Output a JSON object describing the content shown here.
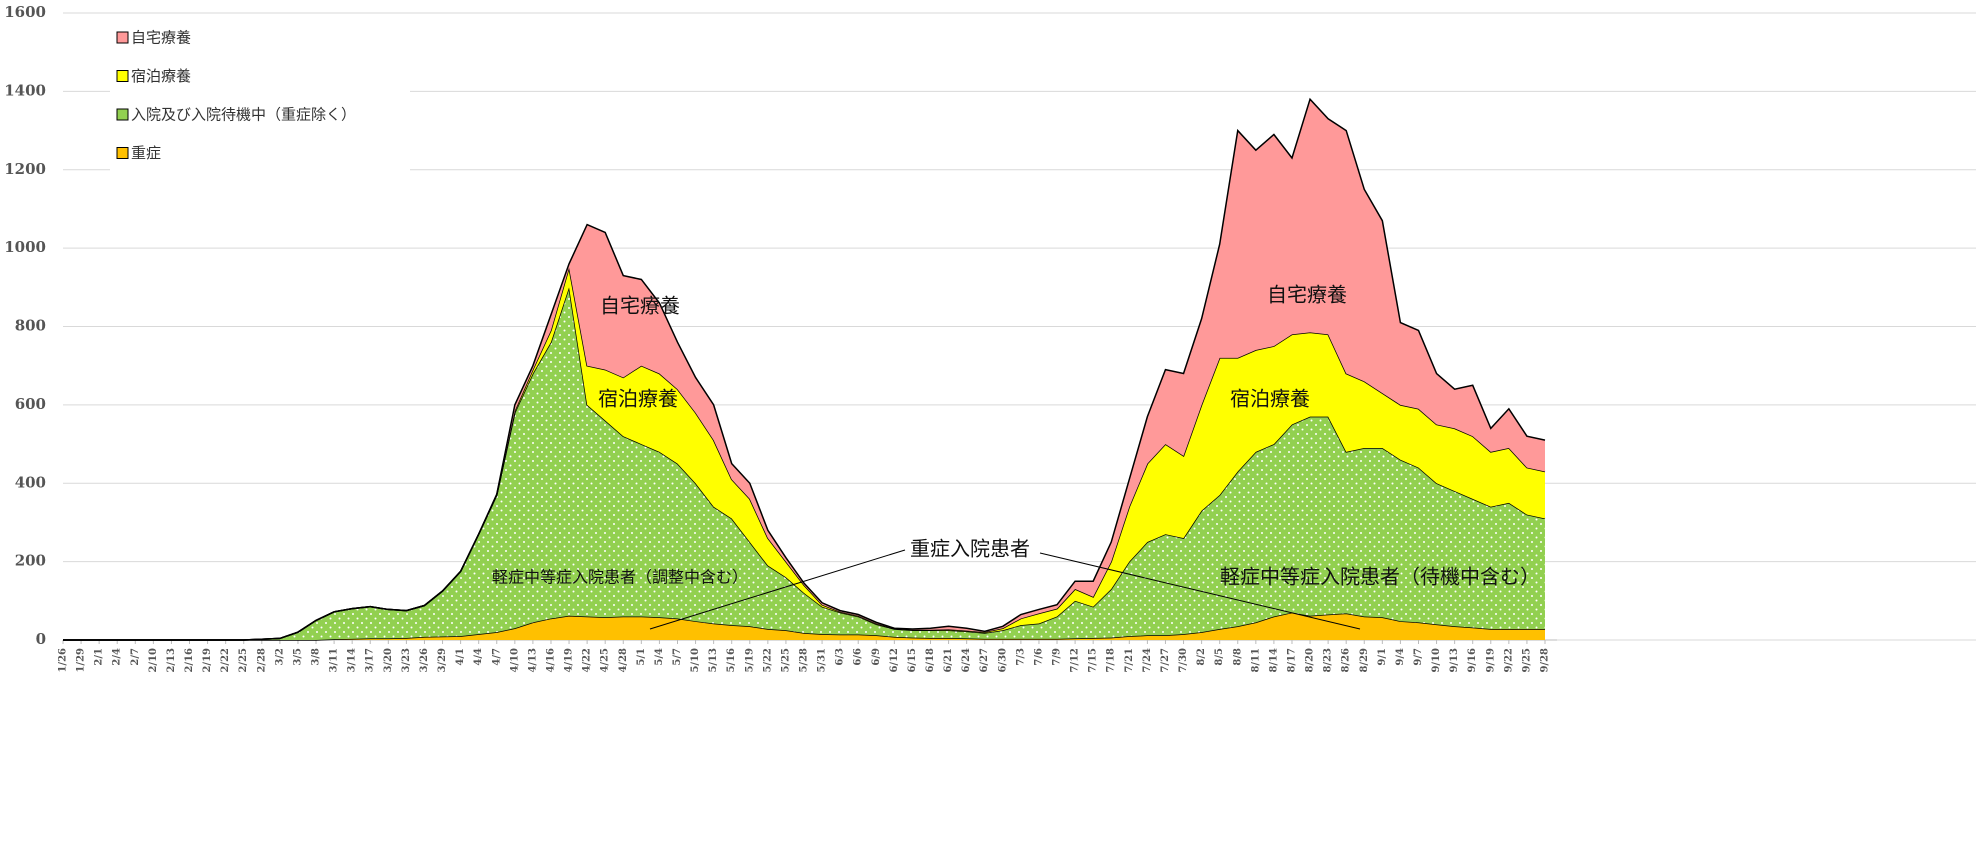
{
  "chart_data": {
    "type": "stacked_area",
    "categories": [
      "1/26",
      "1/29",
      "2/1",
      "2/4",
      "2/7",
      "2/10",
      "2/13",
      "2/16",
      "2/19",
      "2/22",
      "2/25",
      "2/28",
      "3/2",
      "3/5",
      "3/8",
      "3/11",
      "3/14",
      "3/17",
      "3/20",
      "3/23",
      "3/26",
      "3/29",
      "4/1",
      "4/4",
      "4/7",
      "4/10",
      "4/13",
      "4/16",
      "4/19",
      "4/22",
      "4/25",
      "4/28",
      "5/1",
      "5/4",
      "5/7",
      "5/10",
      "5/13",
      "5/16",
      "5/19",
      "5/22",
      "5/25",
      "5/28",
      "5/31",
      "6/3",
      "6/6",
      "6/9",
      "6/12",
      "6/15",
      "6/18",
      "6/21",
      "6/24",
      "6/27",
      "6/30",
      "7/3",
      "7/6",
      "7/9",
      "7/12",
      "7/15",
      "7/18",
      "7/21",
      "7/24",
      "7/27",
      "7/30",
      "8/2",
      "8/5",
      "8/8",
      "8/11",
      "8/14",
      "8/17",
      "8/20",
      "8/23",
      "8/26",
      "8/29",
      "9/1",
      "9/4",
      "9/7",
      "9/10",
      "9/13",
      "9/16",
      "9/19",
      "9/22",
      "9/25",
      "9/28"
    ],
    "series": [
      {
        "name": "自宅療養",
        "color": "#ff9999",
        "values": [
          0,
          0,
          0,
          0,
          0,
          0,
          0,
          0,
          0,
          0,
          0,
          0,
          0,
          0,
          0,
          0,
          0,
          0,
          0,
          0,
          0,
          0,
          0,
          0,
          2,
          15,
          10,
          40,
          10,
          360,
          350,
          260,
          220,
          180,
          120,
          90,
          90,
          40,
          40,
          20,
          10,
          5,
          5,
          3,
          3,
          3,
          1,
          2,
          4,
          8,
          6,
          2,
          5,
          10,
          10,
          10,
          20,
          40,
          50,
          70,
          120,
          190,
          210,
          220,
          290,
          580,
          510,
          540,
          450,
          595,
          550,
          620,
          490,
          440,
          210,
          200,
          130,
          100,
          130,
          60,
          100,
          80,
          80
        ]
      },
      {
        "name": "宿泊療養",
        "color": "#ffff00",
        "values": [
          0,
          0,
          0,
          0,
          0,
          0,
          0,
          0,
          0,
          0,
          0,
          0,
          0,
          0,
          0,
          0,
          0,
          0,
          0,
          0,
          0,
          0,
          0,
          0,
          0,
          5,
          10,
          30,
          50,
          100,
          130,
          150,
          200,
          200,
          190,
          180,
          170,
          100,
          110,
          70,
          40,
          20,
          5,
          2,
          2,
          2,
          1,
          1,
          1,
          2,
          2,
          2,
          5,
          17,
          26,
          20,
          30,
          25,
          70,
          140,
          200,
          230,
          210,
          270,
          350,
          290,
          260,
          250,
          230,
          215,
          210,
          200,
          170,
          140,
          140,
          150,
          150,
          160,
          160,
          140,
          140,
          120,
          120
        ]
      },
      {
        "name": "入院及び入院待機中（重症除く）",
        "color": "#92d050",
        "values": [
          0,
          0,
          0,
          0,
          0,
          0,
          0,
          0,
          0,
          0,
          0,
          2,
          4,
          20,
          50,
          70,
          77,
          81,
          74,
          70,
          80,
          116,
          165,
          255,
          350,
          550,
          635,
          705,
          838,
          540,
          502,
          460,
          440,
          422,
          395,
          352,
          298,
          272,
          215,
          162,
          135,
          102,
          70,
          56,
          46,
          28,
          20,
          19,
          20,
          20,
          18,
          15,
          22,
          35,
          39,
          57,
          96,
          80,
          124,
          190,
          238,
          258,
          245,
          310,
          342,
          395,
          435,
          440,
          480,
          508,
          505,
          412,
          430,
          432,
          412,
          395,
          360,
          345,
          328,
          312,
          322,
          292,
          282
        ]
      },
      {
        "name": "重症",
        "color": "#ffc000",
        "values": [
          0,
          0,
          0,
          0,
          0,
          0,
          0,
          0,
          0,
          0,
          0,
          0,
          0,
          0,
          0,
          2,
          3,
          4,
          4,
          5,
          8,
          9,
          10,
          15,
          20,
          30,
          45,
          55,
          62,
          60,
          58,
          60,
          60,
          58,
          55,
          48,
          42,
          38,
          35,
          28,
          25,
          18,
          15,
          14,
          14,
          12,
          8,
          6,
          5,
          5,
          4,
          3,
          3,
          3,
          3,
          3,
          4,
          5,
          6,
          10,
          12,
          12,
          15,
          20,
          28,
          35,
          45,
          60,
          70,
          62,
          65,
          68,
          60,
          58,
          48,
          45,
          40,
          35,
          32,
          28,
          28,
          28,
          28
        ]
      }
    ],
    "annotations": [
      "自宅療養",
      "宿泊療養",
      "軽症中等症入院患者（調整中含む）",
      "自宅療養",
      "宿泊療養",
      "軽症中等症入院患者（待機中含む）",
      "重症入院患者"
    ],
    "ylim": [
      0,
      1600
    ],
    "yticks": [
      0,
      200,
      400,
      600,
      800,
      1000,
      1200,
      1400,
      1600
    ],
    "grid": true,
    "legend": "upper left"
  }
}
